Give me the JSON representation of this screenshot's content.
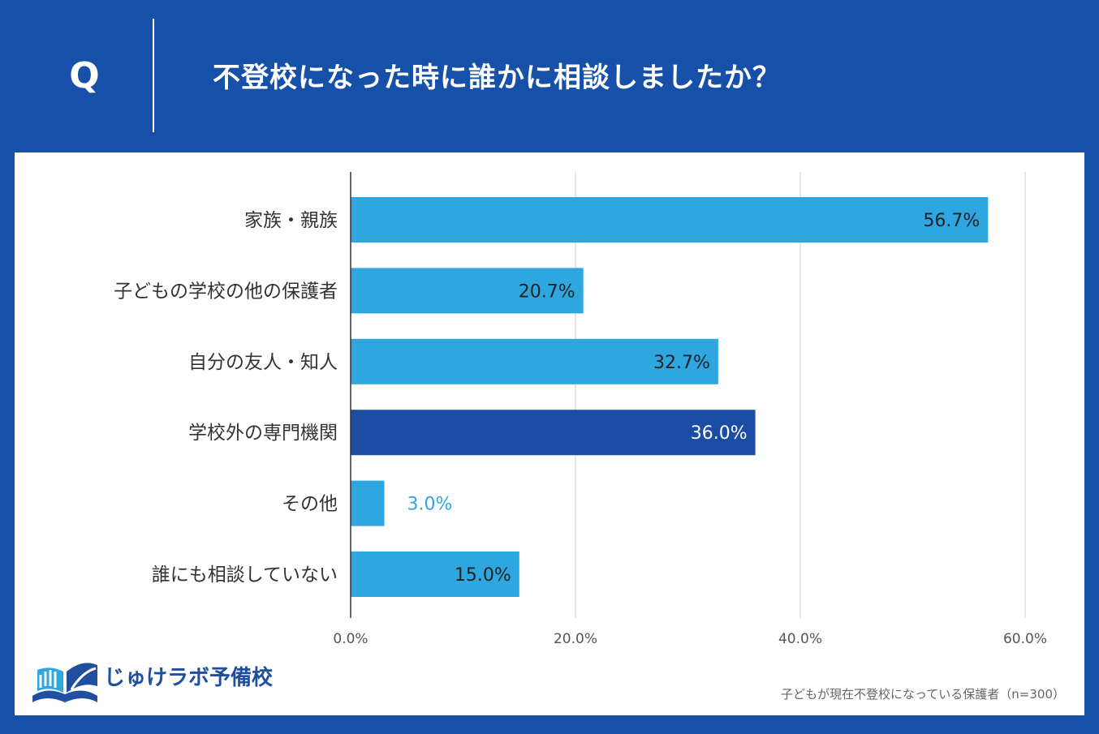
{
  "header": {
    "q_mark": "Q",
    "question": "不登校になった時に誰かに相談しましたか？"
  },
  "colors": {
    "background": "#1650a8",
    "bar": "#2ea6e0",
    "bar_highlight": "#1a4da3",
    "panel": "#ffffff",
    "grid": "#dddddd",
    "axis": "#333333"
  },
  "chart_data": {
    "type": "bar",
    "orientation": "horizontal",
    "title": "不登校になった時に誰かに相談しましたか？",
    "categories": [
      "家族・親族",
      "子どもの学校の他の保護者",
      "自分の友人・知人",
      "学校外の専門機関",
      "その他",
      "誰にも相談していない"
    ],
    "values": [
      56.7,
      20.7,
      32.7,
      36.0,
      3.0,
      15.0
    ],
    "value_labels": [
      "56.7%",
      "20.7%",
      "32.7%",
      "36.0%",
      "3.0%",
      "15.0%"
    ],
    "highlight_index": 3,
    "xlim": [
      0,
      60
    ],
    "x_ticks": [
      0,
      20,
      40,
      60
    ],
    "x_tick_labels": [
      "0.0%",
      "20.0%",
      "40.0%",
      "60.0%"
    ],
    "grid": true,
    "xlabel": "",
    "ylabel": ""
  },
  "footer": {
    "logo_text": "じゅけラボ予備校",
    "logo_icon": "open-book-icon",
    "note": "子どもが現在不登校になっている保護者（n=300）"
  }
}
